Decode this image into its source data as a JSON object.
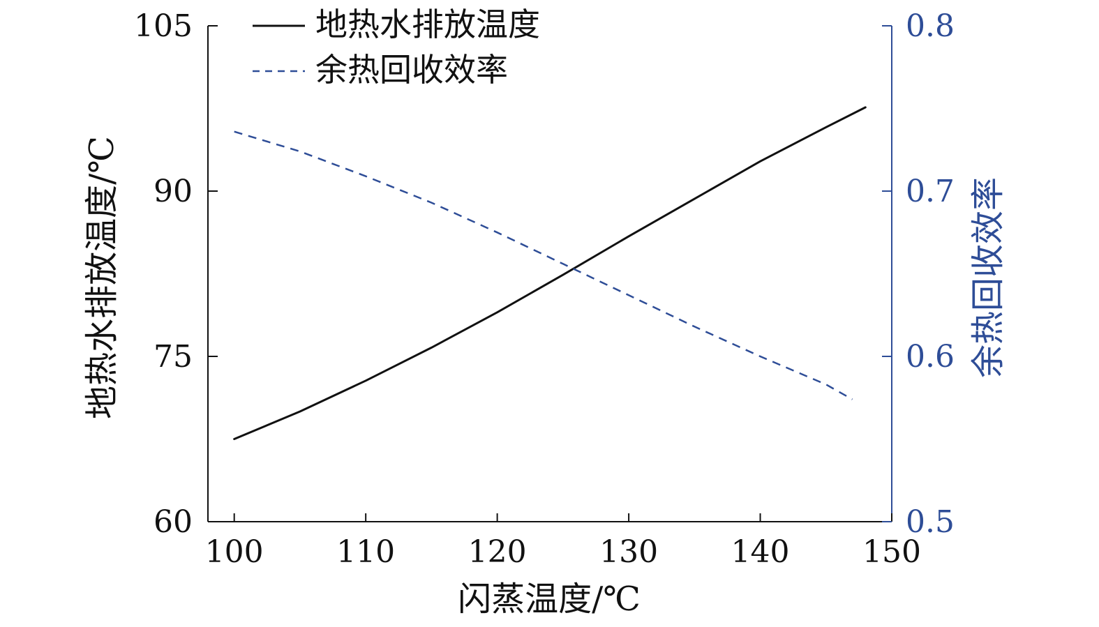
{
  "chart_data": {
    "type": "line",
    "x_axis": {
      "label": "闪蒸温度/℃",
      "range": [
        98,
        150
      ],
      "ticks": [
        100,
        110,
        120,
        130,
        140,
        150
      ]
    },
    "y_axis_left": {
      "label": "地热水排放温度/℃",
      "range": [
        60,
        105
      ],
      "ticks": [
        60,
        75,
        90,
        105
      ]
    },
    "y_axis_right": {
      "label": "余热回收效率",
      "range": [
        0.5,
        0.8
      ],
      "ticks": [
        0.5,
        0.6,
        0.7,
        0.8
      ],
      "color": "#2e4d97"
    },
    "series": [
      {
        "name": "地热水排放温度",
        "axis": "left",
        "style": "solid",
        "color": "#111111",
        "x": [
          100,
          105,
          110,
          115,
          120,
          125,
          130,
          135,
          140,
          145,
          148
        ],
        "y": [
          67.5,
          70.0,
          72.8,
          75.8,
          79.0,
          82.4,
          85.9,
          89.3,
          92.7,
          95.8,
          97.6
        ]
      },
      {
        "name": "余热回收效率",
        "axis": "right",
        "style": "dashed",
        "color": "#2e4d97",
        "x": [
          100,
          105,
          110,
          115,
          120,
          125,
          130,
          135,
          140,
          145,
          147
        ],
        "y": [
          0.736,
          0.724,
          0.709,
          0.693,
          0.675,
          0.656,
          0.637,
          0.618,
          0.6,
          0.583,
          0.574
        ]
      }
    ],
    "legend_position": "top-left",
    "grid": false
  }
}
